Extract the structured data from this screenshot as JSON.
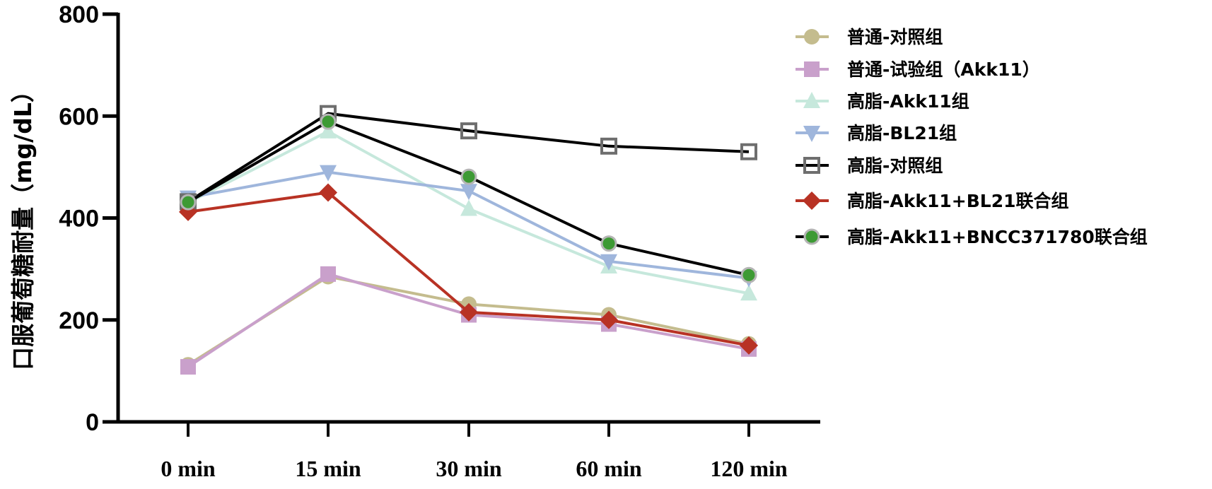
{
  "chart_data": {
    "type": "line",
    "title": "",
    "xlabel": "",
    "ylabel": "口服葡萄糖耐量（mg/dL）",
    "categories": [
      "0 min",
      "15 min",
      "30 min",
      "60 min",
      "120 min"
    ],
    "ylim": [
      0,
      800
    ],
    "yticks": [
      "0",
      "200",
      "400",
      "600",
      "800"
    ],
    "grid": false,
    "legend_position": "right",
    "series": [
      {
        "name": "普通-对照组",
        "marker": "circle",
        "color": "#c4bc8e",
        "line_color": "#c4bc8e",
        "values": [
          112,
          285,
          231,
          210,
          153
        ]
      },
      {
        "name": "普通-试验组（Akk11）",
        "marker": "square",
        "color": "#c9a0cb",
        "line_color": "#c9a0cb",
        "values": [
          108,
          290,
          210,
          192,
          143
        ]
      },
      {
        "name": "高脂-Akk11组",
        "marker": "triangle-up",
        "color": "#c6e8dc",
        "line_color": "#c6e8dc",
        "values": [
          430,
          570,
          418,
          305,
          252
        ]
      },
      {
        "name": "高脂-BL21组",
        "marker": "triangle-down",
        "color": "#9fb6dc",
        "line_color": "#9fb6dc",
        "values": [
          440,
          490,
          453,
          315,
          282
        ]
      },
      {
        "name": "高脂-对照组",
        "marker": "square-open",
        "color": "#6e6e6e",
        "line_color": "#000000",
        "values": [
          432,
          605,
          571,
          541,
          530
        ]
      },
      {
        "name": "高脂-Akk11+BL21联合组",
        "marker": "diamond",
        "color": "#b83224",
        "line_color": "#b83224",
        "values": [
          412,
          450,
          215,
          200,
          150
        ]
      },
      {
        "name": "高脂-Akk11+BNCC371780联合组",
        "marker": "circle-ringed",
        "color": "#3d9a34",
        "ring_color": "#b5b5b5",
        "line_color": "#000000",
        "values": [
          431,
          589,
          481,
          350,
          288
        ]
      }
    ]
  }
}
